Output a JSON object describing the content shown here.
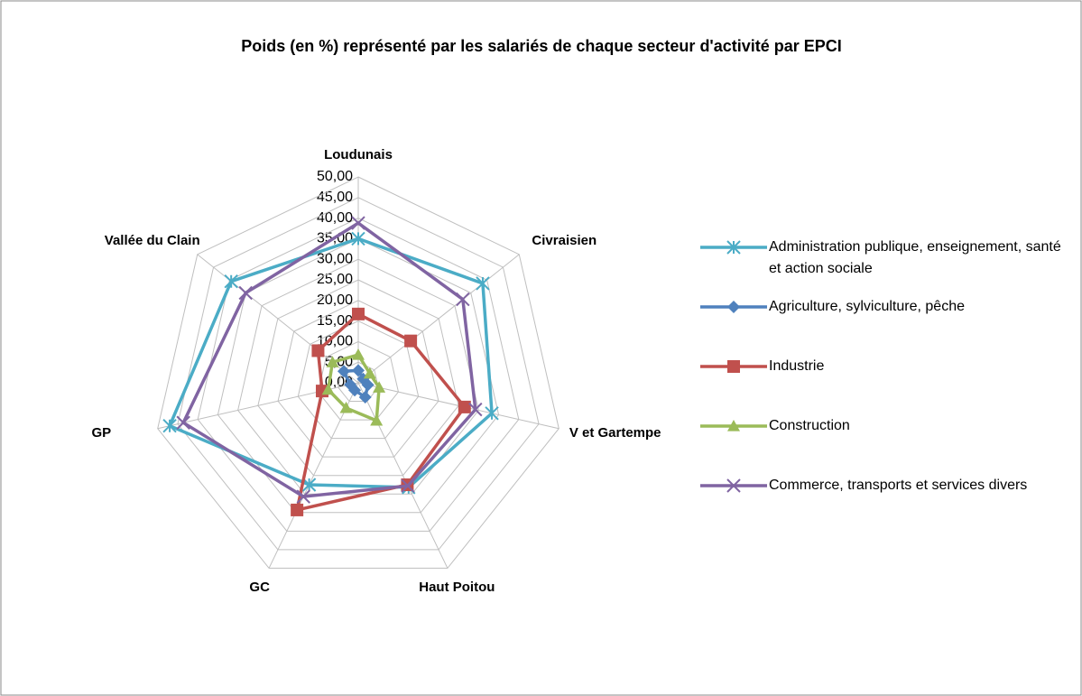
{
  "chart_data": {
    "type": "radar",
    "title": "Poids (en %) représenté par les salariés de chaque secteur d'activité par EPCI",
    "categories": [
      "Loudunais",
      "Civraisien",
      "V et Gartempe",
      "Haut Poitou",
      "GC",
      "GP",
      "Vallée du Clain"
    ],
    "ylim": [
      0,
      50
    ],
    "yticks": [
      {
        "value": 0,
        "label": "0,00"
      },
      {
        "value": 5,
        "label": "5,00"
      },
      {
        "value": 10,
        "label": "10,00"
      },
      {
        "value": 15,
        "label": "15,00"
      },
      {
        "value": 20,
        "label": "20,00"
      },
      {
        "value": 25,
        "label": "25,00"
      },
      {
        "value": 30,
        "label": "30,00"
      },
      {
        "value": 35,
        "label": "35,00"
      },
      {
        "value": 40,
        "label": "40,00"
      },
      {
        "value": 45,
        "label": "45,00"
      },
      {
        "value": 50,
        "label": "50,00"
      }
    ],
    "grid": true,
    "legend": "right",
    "series": [
      {
        "name": "Administration publique, enseignement, santé et action sociale",
        "color": "#4bacc6",
        "marker": "star",
        "values": [
          35,
          38.7,
          33.3,
          28.2,
          27.5,
          47,
          39.5
        ]
      },
      {
        "name": "Agriculture, sylviculture, pêche",
        "color": "#4f81bd",
        "marker": "diamond",
        "values": [
          3,
          1.5,
          2.4,
          3.9,
          2,
          2,
          4.5
        ]
      },
      {
        "name": "Industrie",
        "color": "#c0504d",
        "marker": "square",
        "values": [
          16.7,
          16.3,
          26.5,
          27.5,
          34.3,
          9,
          12.5
        ]
      },
      {
        "name": "Construction",
        "color": "#9bbb59",
        "marker": "triangle",
        "values": [
          6.8,
          3.6,
          5.2,
          10.2,
          6.8,
          7.5,
          8
        ]
      },
      {
        "name": "Commerce, transports et services divers",
        "color": "#8064a2",
        "marker": "x",
        "values": [
          38.8,
          32.5,
          29.2,
          27.8,
          30.7,
          43.6,
          35
        ]
      }
    ]
  }
}
